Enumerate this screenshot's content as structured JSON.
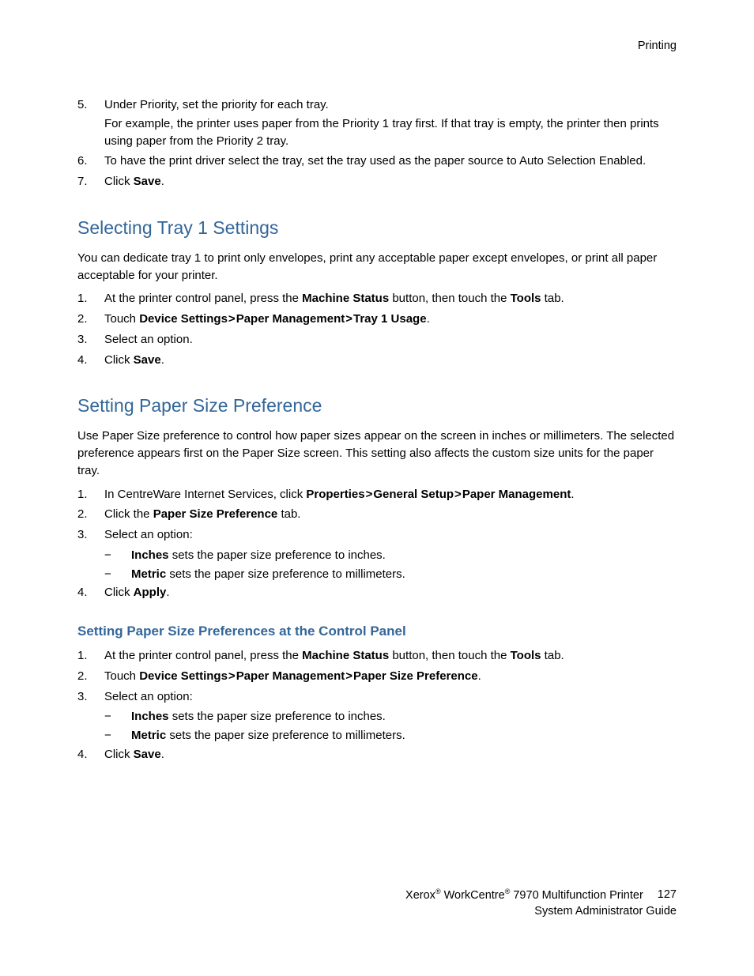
{
  "header": {
    "section": "Printing"
  },
  "block1": {
    "items": [
      {
        "num": "5.",
        "text": "Under Priority, set the priority for each tray.",
        "sub": "For example, the printer uses paper from the Priority 1 tray first. If that tray is empty, the printer then prints using paper from the Priority 2 tray."
      },
      {
        "num": "6.",
        "text": "To have the print driver select the tray, set the tray used as the paper source to Auto Selection Enabled."
      },
      {
        "num": "7.",
        "pre": "Click ",
        "bold": "Save",
        "post": "."
      }
    ]
  },
  "sec1": {
    "title": "Selecting Tray 1 Settings",
    "intro": "You can dedicate tray 1 to print only envelopes, print any acceptable paper except envelopes, or print all paper acceptable for your printer.",
    "items": {
      "i1": {
        "num": "1.",
        "pre": "At the printer control panel, press the ",
        "b1": "Machine Status",
        "mid": " button, then touch the ",
        "b2": "Tools",
        "post": " tab."
      },
      "i2": {
        "num": "2.",
        "pre": "Touch ",
        "b1": "Device Settings",
        "g1": ">",
        "b2": "Paper Management",
        "g2": ">",
        "b3": "Tray 1 Usage",
        "post": "."
      },
      "i3": {
        "num": "3.",
        "text": "Select an option."
      },
      "i4": {
        "num": "4.",
        "pre": "Click ",
        "bold": "Save",
        "post": "."
      }
    }
  },
  "sec2": {
    "title": "Setting Paper Size Preference",
    "intro": "Use Paper Size preference to control how paper sizes appear on the screen in inches or millimeters. The selected preference appears first on the Paper Size screen. This setting also affects the custom size units for the paper tray.",
    "items": {
      "i1": {
        "num": "1.",
        "pre": "In CentreWare Internet Services, click ",
        "b1": "Properties",
        "g1": ">",
        "b2": "General Setup",
        "g2": ">",
        "b3": "Paper Management",
        "post": "."
      },
      "i2": {
        "num": "2.",
        "pre": "Click the ",
        "bold": "Paper Size Preference",
        "post": " tab."
      },
      "i3": {
        "num": "3.",
        "text": "Select an option:"
      },
      "i4": {
        "num": "4.",
        "pre": "Click ",
        "bold": "Apply",
        "post": "."
      }
    },
    "subs": {
      "s1": {
        "dash": "−",
        "bold": "Inches",
        "post": " sets the paper size preference to inches."
      },
      "s2": {
        "dash": "−",
        "bold": "Metric",
        "post": " sets the paper size preference to millimeters."
      }
    }
  },
  "sec3": {
    "title": "Setting Paper Size Preferences at the Control Panel",
    "items": {
      "i1": {
        "num": "1.",
        "pre": "At the printer control panel, press the ",
        "b1": "Machine Status",
        "mid": " button, then touch the ",
        "b2": "Tools",
        "post": " tab."
      },
      "i2": {
        "num": "2.",
        "pre": "Touch ",
        "b1": "Device Settings",
        "g1": ">",
        "b2": "Paper Management",
        "g2": ">",
        "b3": "Paper Size Preference",
        "post": "."
      },
      "i3": {
        "num": "3.",
        "text": "Select an option:"
      },
      "i4": {
        "num": "4.",
        "pre": "Click ",
        "bold": "Save",
        "post": "."
      }
    },
    "subs": {
      "s1": {
        "dash": "−",
        "bold": "Inches",
        "post": " sets the paper size preference to inches."
      },
      "s2": {
        "dash": "−",
        "bold": "Metric",
        "post": " sets the paper size preference to millimeters."
      }
    }
  },
  "footer": {
    "brand1": "Xerox",
    "reg": "®",
    "brand2": " WorkCentre",
    "model": " 7970 Multifunction Printer",
    "page": "127",
    "line2": "System Administrator Guide"
  }
}
